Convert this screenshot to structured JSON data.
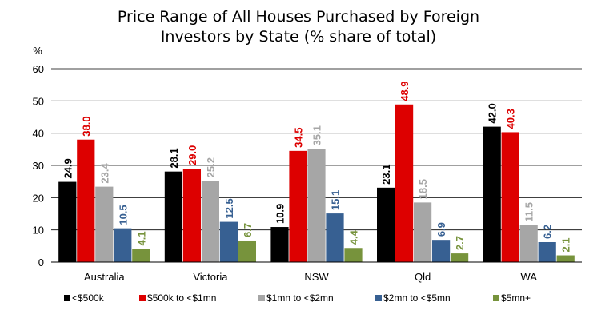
{
  "chart_data": {
    "type": "bar",
    "title": [
      "Price Range of All Houses Purchased by Foreign",
      "Investors by State (% share of total)"
    ],
    "ylabel": "%",
    "ylim": [
      0,
      60
    ],
    "yticks": [
      0,
      10,
      20,
      30,
      40,
      50,
      60
    ],
    "grid": true,
    "legend_position": "bottom",
    "categories": [
      "Australia",
      "Victoria",
      "NSW",
      "Qld",
      "WA"
    ],
    "series": [
      {
        "name": "<$500k",
        "color": "#000000",
        "values": [
          24.9,
          28.1,
          10.9,
          23.1,
          42.0
        ],
        "labels": [
          "24.9",
          "28.1",
          "10.9",
          "23.1",
          "42.0"
        ]
      },
      {
        "name": "$500k to <$1mn",
        "color": "#dd0000",
        "values": [
          38.0,
          29.0,
          34.5,
          48.9,
          40.3
        ],
        "labels": [
          "38.0",
          "29.0",
          "34.5",
          "48.9",
          "40.3"
        ]
      },
      {
        "name": "$1mn to <$2mn",
        "color": "#a6a6a6",
        "values": [
          23.4,
          25.2,
          35.1,
          18.5,
          11.5
        ],
        "labels": [
          "23.4",
          "25.2",
          "35.1",
          "18.5",
          "11.5"
        ]
      },
      {
        "name": "$2mn to <$5mn",
        "color": "#376092",
        "values": [
          10.5,
          12.5,
          15.1,
          6.9,
          6.2
        ],
        "labels": [
          "10.5",
          "12.5",
          "15.1",
          "6.9",
          "6.2"
        ]
      },
      {
        "name": "$5mn+",
        "color": "#77933c",
        "values": [
          4.1,
          6.7,
          4.4,
          2.7,
          2.1
        ],
        "labels": [
          "4.1",
          "6.7",
          "4.4",
          "2.7",
          "2.1"
        ]
      }
    ]
  }
}
